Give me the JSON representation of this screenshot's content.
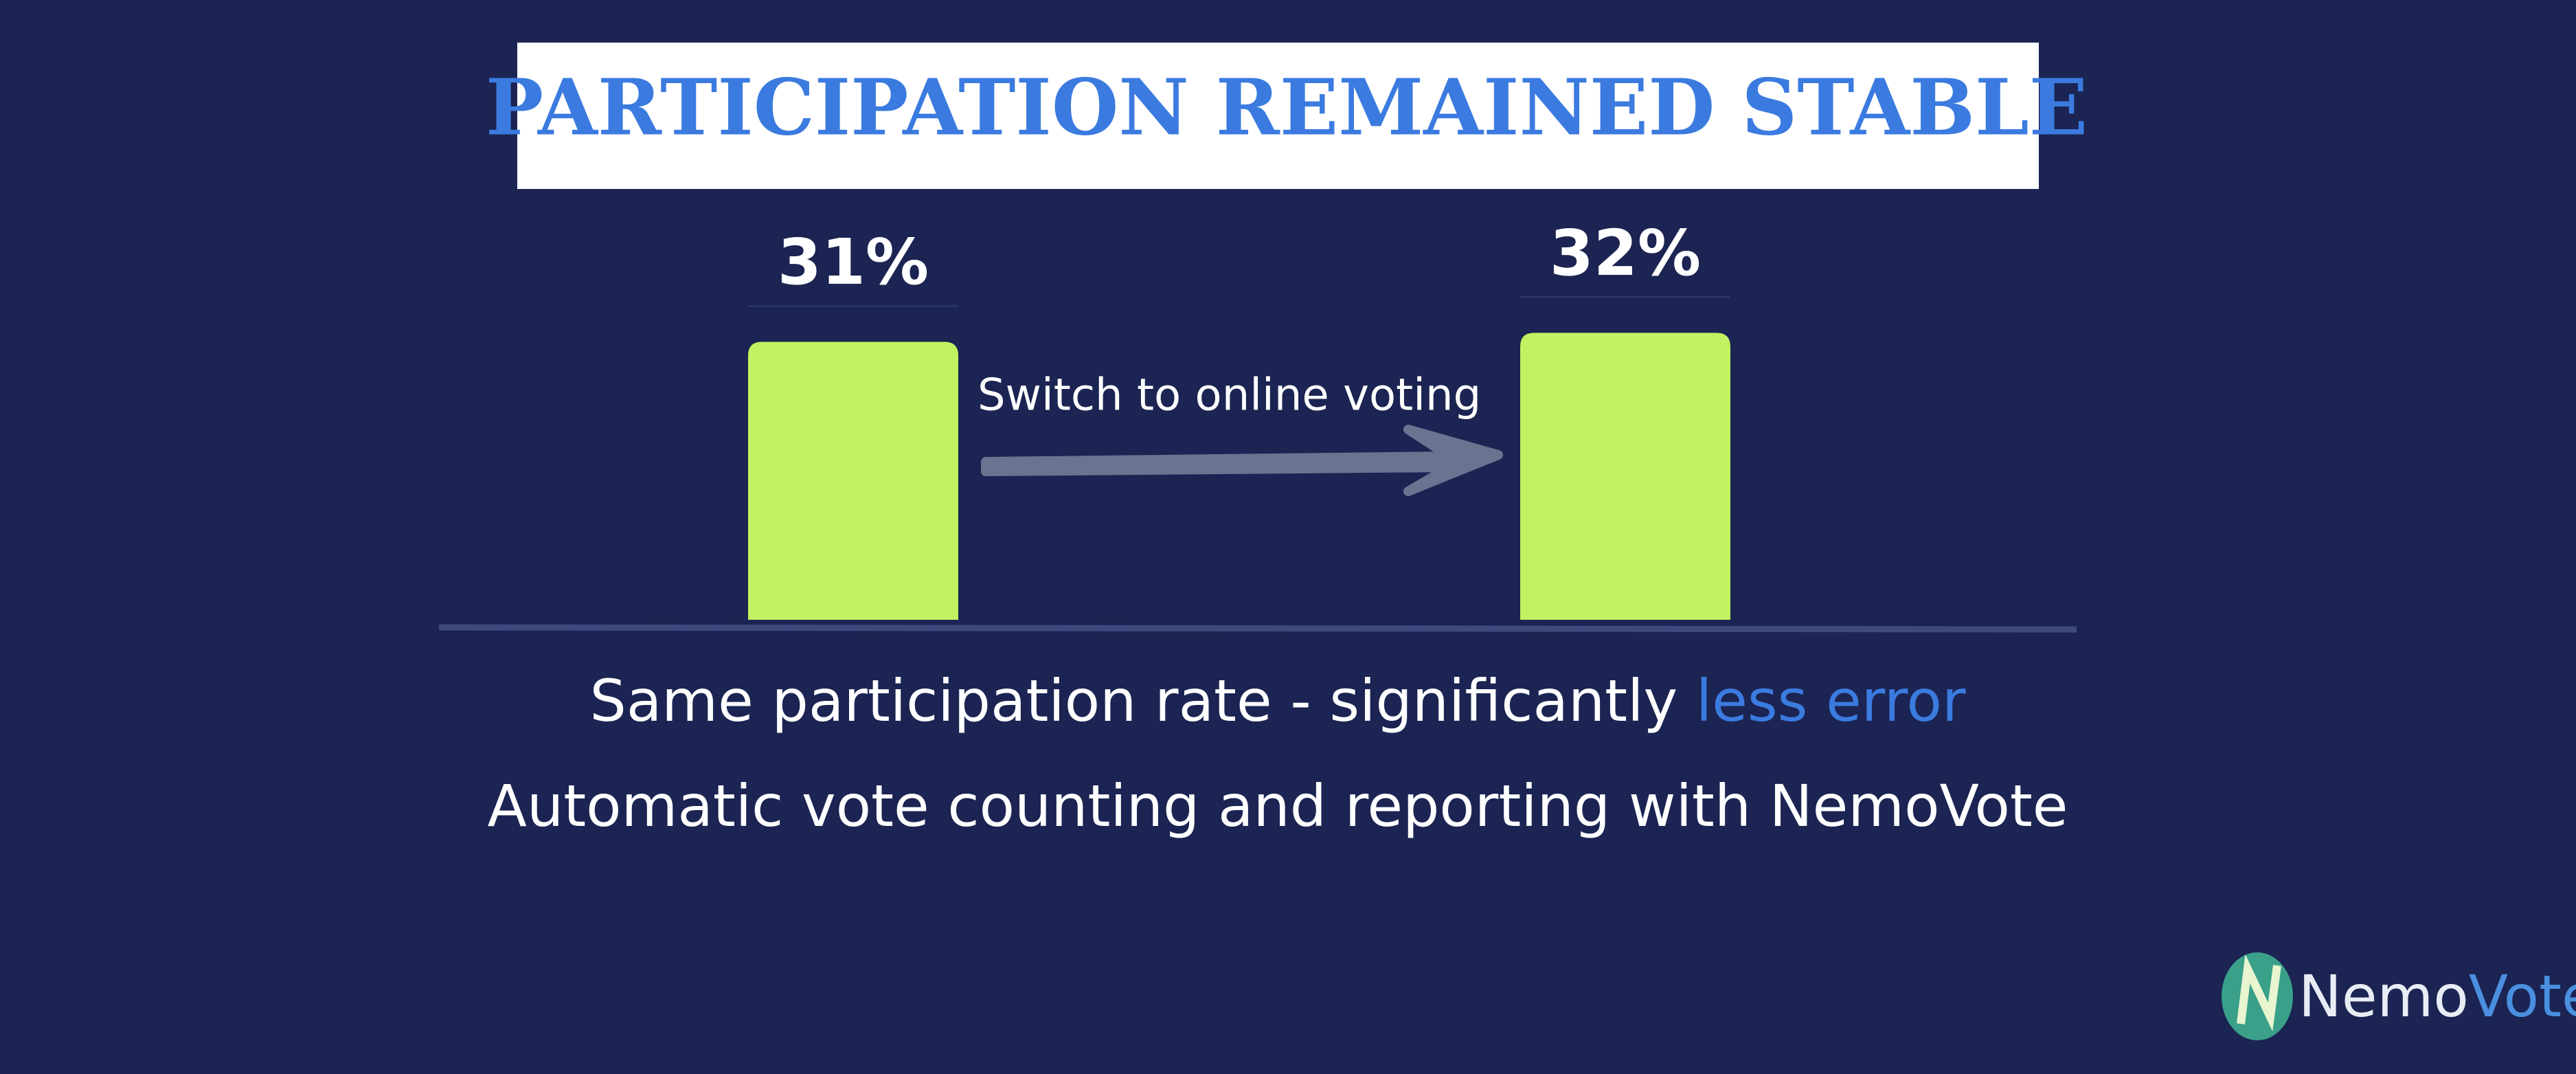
{
  "chart_data": {
    "type": "bar",
    "title": "PARTICIPATION REMAINED STABLE",
    "categories": [
      null,
      null
    ],
    "values": [
      31,
      32
    ],
    "value_labels": [
      "31%",
      "32%"
    ],
    "color": "#c0f261",
    "annotation": "Switch to online voting",
    "subtitle": {
      "lead": "Same participation rate - significantly ",
      "highlight": "less error"
    },
    "caption": "Automatic vote counting and reporting with NemoVote"
  },
  "logo": {
    "first": "Nemo",
    "second": "Vote"
  }
}
